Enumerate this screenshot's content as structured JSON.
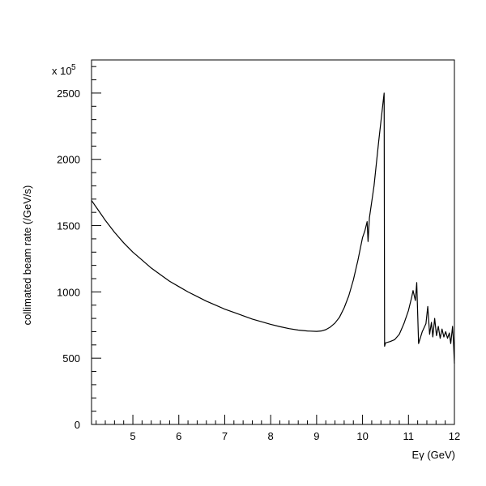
{
  "chart_data": {
    "type": "line",
    "title": "",
    "xlabel": "Eγ (GeV)",
    "ylabel": "collimated beam rate (/GeV/s)",
    "y_multiplier_label": "x 10",
    "y_multiplier_exponent": "5",
    "xlim": [
      4.1,
      12
    ],
    "ylim": [
      0,
      2750
    ],
    "x_ticks": [
      5,
      6,
      7,
      8,
      9,
      10,
      11,
      12
    ],
    "x_tick_labels": [
      "5",
      "6",
      "7",
      "8",
      "9",
      "10",
      "11",
      "12"
    ],
    "y_ticks": [
      0,
      500,
      1000,
      1500,
      2000,
      2500
    ],
    "y_tick_labels": [
      "0",
      "500",
      "1000",
      "1500",
      "2000",
      "2500"
    ],
    "grid": false,
    "series": [
      {
        "color": "#000000",
        "points": [
          [
            4.1,
            1690
          ],
          [
            4.2,
            1640
          ],
          [
            4.4,
            1540
          ],
          [
            4.6,
            1450
          ],
          [
            4.8,
            1370
          ],
          [
            5.0,
            1300
          ],
          [
            5.2,
            1240
          ],
          [
            5.4,
            1180
          ],
          [
            5.6,
            1130
          ],
          [
            5.8,
            1080
          ],
          [
            6.0,
            1040
          ],
          [
            6.2,
            1000
          ],
          [
            6.4,
            965
          ],
          [
            6.6,
            930
          ],
          [
            6.8,
            900
          ],
          [
            7.0,
            870
          ],
          [
            7.2,
            845
          ],
          [
            7.4,
            820
          ],
          [
            7.6,
            795
          ],
          [
            7.8,
            775
          ],
          [
            8.0,
            755
          ],
          [
            8.2,
            738
          ],
          [
            8.4,
            723
          ],
          [
            8.6,
            712
          ],
          [
            8.8,
            705
          ],
          [
            9.0,
            702
          ],
          [
            9.1,
            705
          ],
          [
            9.2,
            715
          ],
          [
            9.3,
            735
          ],
          [
            9.4,
            765
          ],
          [
            9.5,
            810
          ],
          [
            9.6,
            880
          ],
          [
            9.7,
            970
          ],
          [
            9.8,
            1090
          ],
          [
            9.9,
            1240
          ],
          [
            10.0,
            1410
          ],
          [
            10.05,
            1460
          ],
          [
            10.1,
            1530
          ],
          [
            10.12,
            1380
          ],
          [
            10.15,
            1560
          ],
          [
            10.25,
            1800
          ],
          [
            10.35,
            2130
          ],
          [
            10.45,
            2440
          ],
          [
            10.47,
            2500
          ],
          [
            10.48,
            590
          ],
          [
            10.5,
            615
          ],
          [
            10.6,
            625
          ],
          [
            10.7,
            640
          ],
          [
            10.8,
            680
          ],
          [
            10.9,
            760
          ],
          [
            11.0,
            860
          ],
          [
            11.07,
            960
          ],
          [
            11.1,
            1010
          ],
          [
            11.15,
            935
          ],
          [
            11.18,
            1070
          ],
          [
            11.22,
            610
          ],
          [
            11.3,
            700
          ],
          [
            11.38,
            760
          ],
          [
            11.42,
            890
          ],
          [
            11.46,
            680
          ],
          [
            11.5,
            770
          ],
          [
            11.53,
            660
          ],
          [
            11.57,
            800
          ],
          [
            11.61,
            670
          ],
          [
            11.65,
            740
          ],
          [
            11.69,
            650
          ],
          [
            11.73,
            720
          ],
          [
            11.77,
            660
          ],
          [
            11.81,
            700
          ],
          [
            11.85,
            650
          ],
          [
            11.89,
            690
          ],
          [
            11.92,
            610
          ],
          [
            11.96,
            740
          ],
          [
            11.98,
            620
          ],
          [
            12.0,
            460
          ]
        ]
      }
    ]
  }
}
